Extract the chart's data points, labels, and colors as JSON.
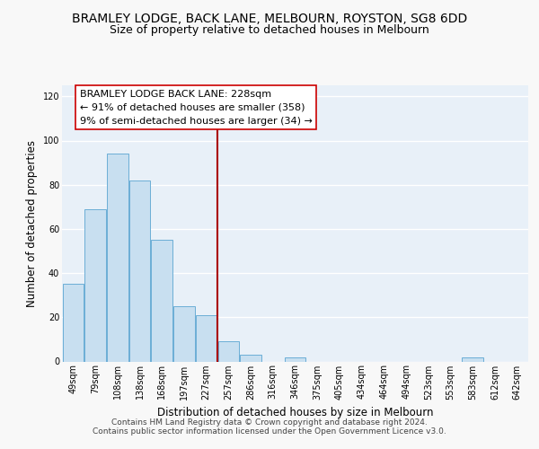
{
  "title": "BRAMLEY LODGE, BACK LANE, MELBOURN, ROYSTON, SG8 6DD",
  "subtitle": "Size of property relative to detached houses in Melbourn",
  "xlabel": "Distribution of detached houses by size in Melbourn",
  "ylabel": "Number of detached properties",
  "bar_color": "#c8dff0",
  "bar_edge_color": "#6baed6",
  "categories": [
    "49sqm",
    "79sqm",
    "108sqm",
    "138sqm",
    "168sqm",
    "197sqm",
    "227sqm",
    "257sqm",
    "286sqm",
    "316sqm",
    "346sqm",
    "375sqm",
    "405sqm",
    "434sqm",
    "464sqm",
    "494sqm",
    "523sqm",
    "553sqm",
    "583sqm",
    "612sqm",
    "642sqm"
  ],
  "values": [
    35,
    69,
    94,
    82,
    55,
    25,
    21,
    9,
    3,
    0,
    2,
    0,
    0,
    0,
    0,
    0,
    0,
    0,
    2,
    0,
    0
  ],
  "ylim": [
    0,
    125
  ],
  "yticks": [
    0,
    20,
    40,
    60,
    80,
    100,
    120
  ],
  "vline_x": 6.5,
  "vline_color": "#aa0000",
  "annotation_line1": "BRAMLEY LODGE BACK LANE: 228sqm",
  "annotation_line2": "← 91% of detached houses are smaller (358)",
  "annotation_line3": "9% of semi-detached houses are larger (34) →",
  "footer_line1": "Contains HM Land Registry data © Crown copyright and database right 2024.",
  "footer_line2": "Contains public sector information licensed under the Open Government Licence v3.0.",
  "plot_bg_color": "#e8f0f8",
  "fig_bg_color": "#f8f8f8",
  "grid_color": "#ffffff",
  "title_fontsize": 10,
  "subtitle_fontsize": 9,
  "axis_label_fontsize": 8.5,
  "tick_fontsize": 7,
  "annotation_fontsize": 8,
  "footer_fontsize": 6.5
}
